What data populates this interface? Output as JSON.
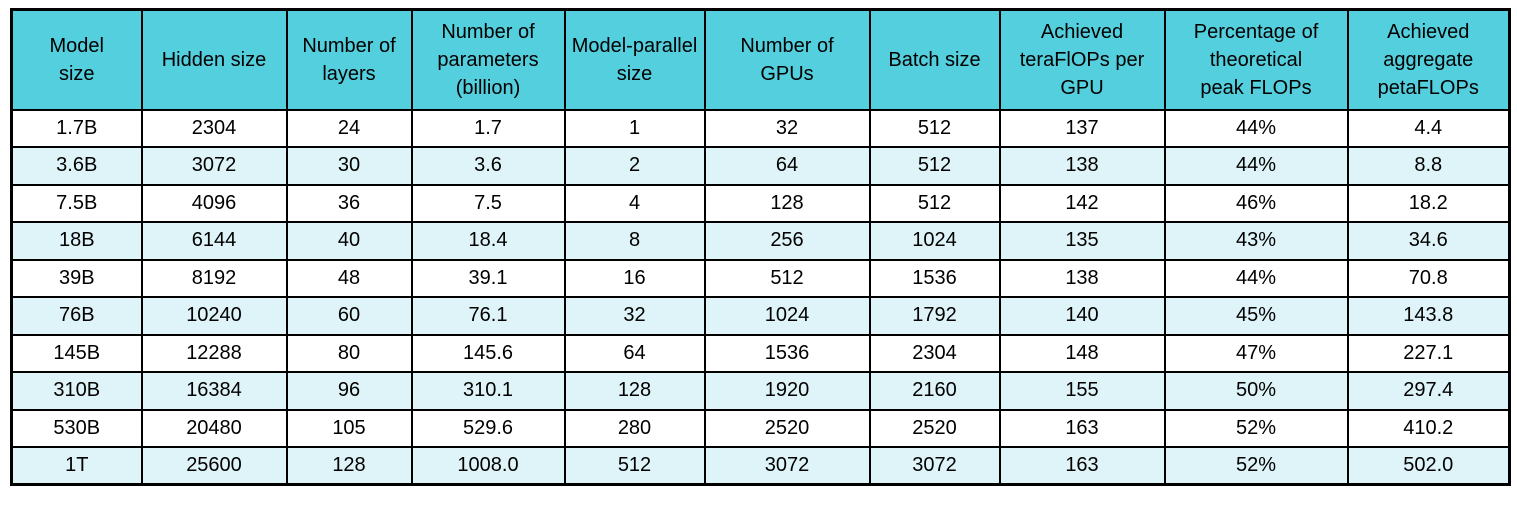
{
  "colors": {
    "header_bg": "#53CFDE",
    "alt_row_bg": "#DFF4F8",
    "row_bg": "#FFFFFF",
    "border": "#000000",
    "text": "#000000"
  },
  "chart_data": {
    "type": "table",
    "title": "",
    "columns": [
      "Model\nsize",
      "Hidden size",
      "Number of\nlayers",
      "Number of\nparameters\n(billion)",
      "Model-parallel\nsize",
      "Number of\nGPUs",
      "Batch size",
      "Achieved\nteraFlOPs per\nGPU",
      "Percentage of\ntheoretical\npeak FLOPs",
      "Achieved\naggregate\npetaFLOPs"
    ],
    "rows": [
      [
        "1.7B",
        "2304",
        "24",
        "1.7",
        "1",
        "32",
        "512",
        "137",
        "44%",
        "4.4"
      ],
      [
        "3.6B",
        "3072",
        "30",
        "3.6",
        "2",
        "64",
        "512",
        "138",
        "44%",
        "8.8"
      ],
      [
        "7.5B",
        "4096",
        "36",
        "7.5",
        "4",
        "128",
        "512",
        "142",
        "46%",
        "18.2"
      ],
      [
        "18B",
        "6144",
        "40",
        "18.4",
        "8",
        "256",
        "1024",
        "135",
        "43%",
        "34.6"
      ],
      [
        "39B",
        "8192",
        "48",
        "39.1",
        "16",
        "512",
        "1536",
        "138",
        "44%",
        "70.8"
      ],
      [
        "76B",
        "10240",
        "60",
        "76.1",
        "32",
        "1024",
        "1792",
        "140",
        "45%",
        "143.8"
      ],
      [
        "145B",
        "12288",
        "80",
        "145.6",
        "64",
        "1536",
        "2304",
        "148",
        "47%",
        "227.1"
      ],
      [
        "310B",
        "16384",
        "96",
        "310.1",
        "128",
        "1920",
        "2160",
        "155",
        "50%",
        "297.4"
      ],
      [
        "530B",
        "20480",
        "105",
        "529.6",
        "280",
        "2520",
        "2520",
        "163",
        "52%",
        "410.2"
      ],
      [
        "1T",
        "25600",
        "128",
        "1008.0",
        "512",
        "3072",
        "3072",
        "163",
        "52%",
        "502.0"
      ]
    ]
  }
}
